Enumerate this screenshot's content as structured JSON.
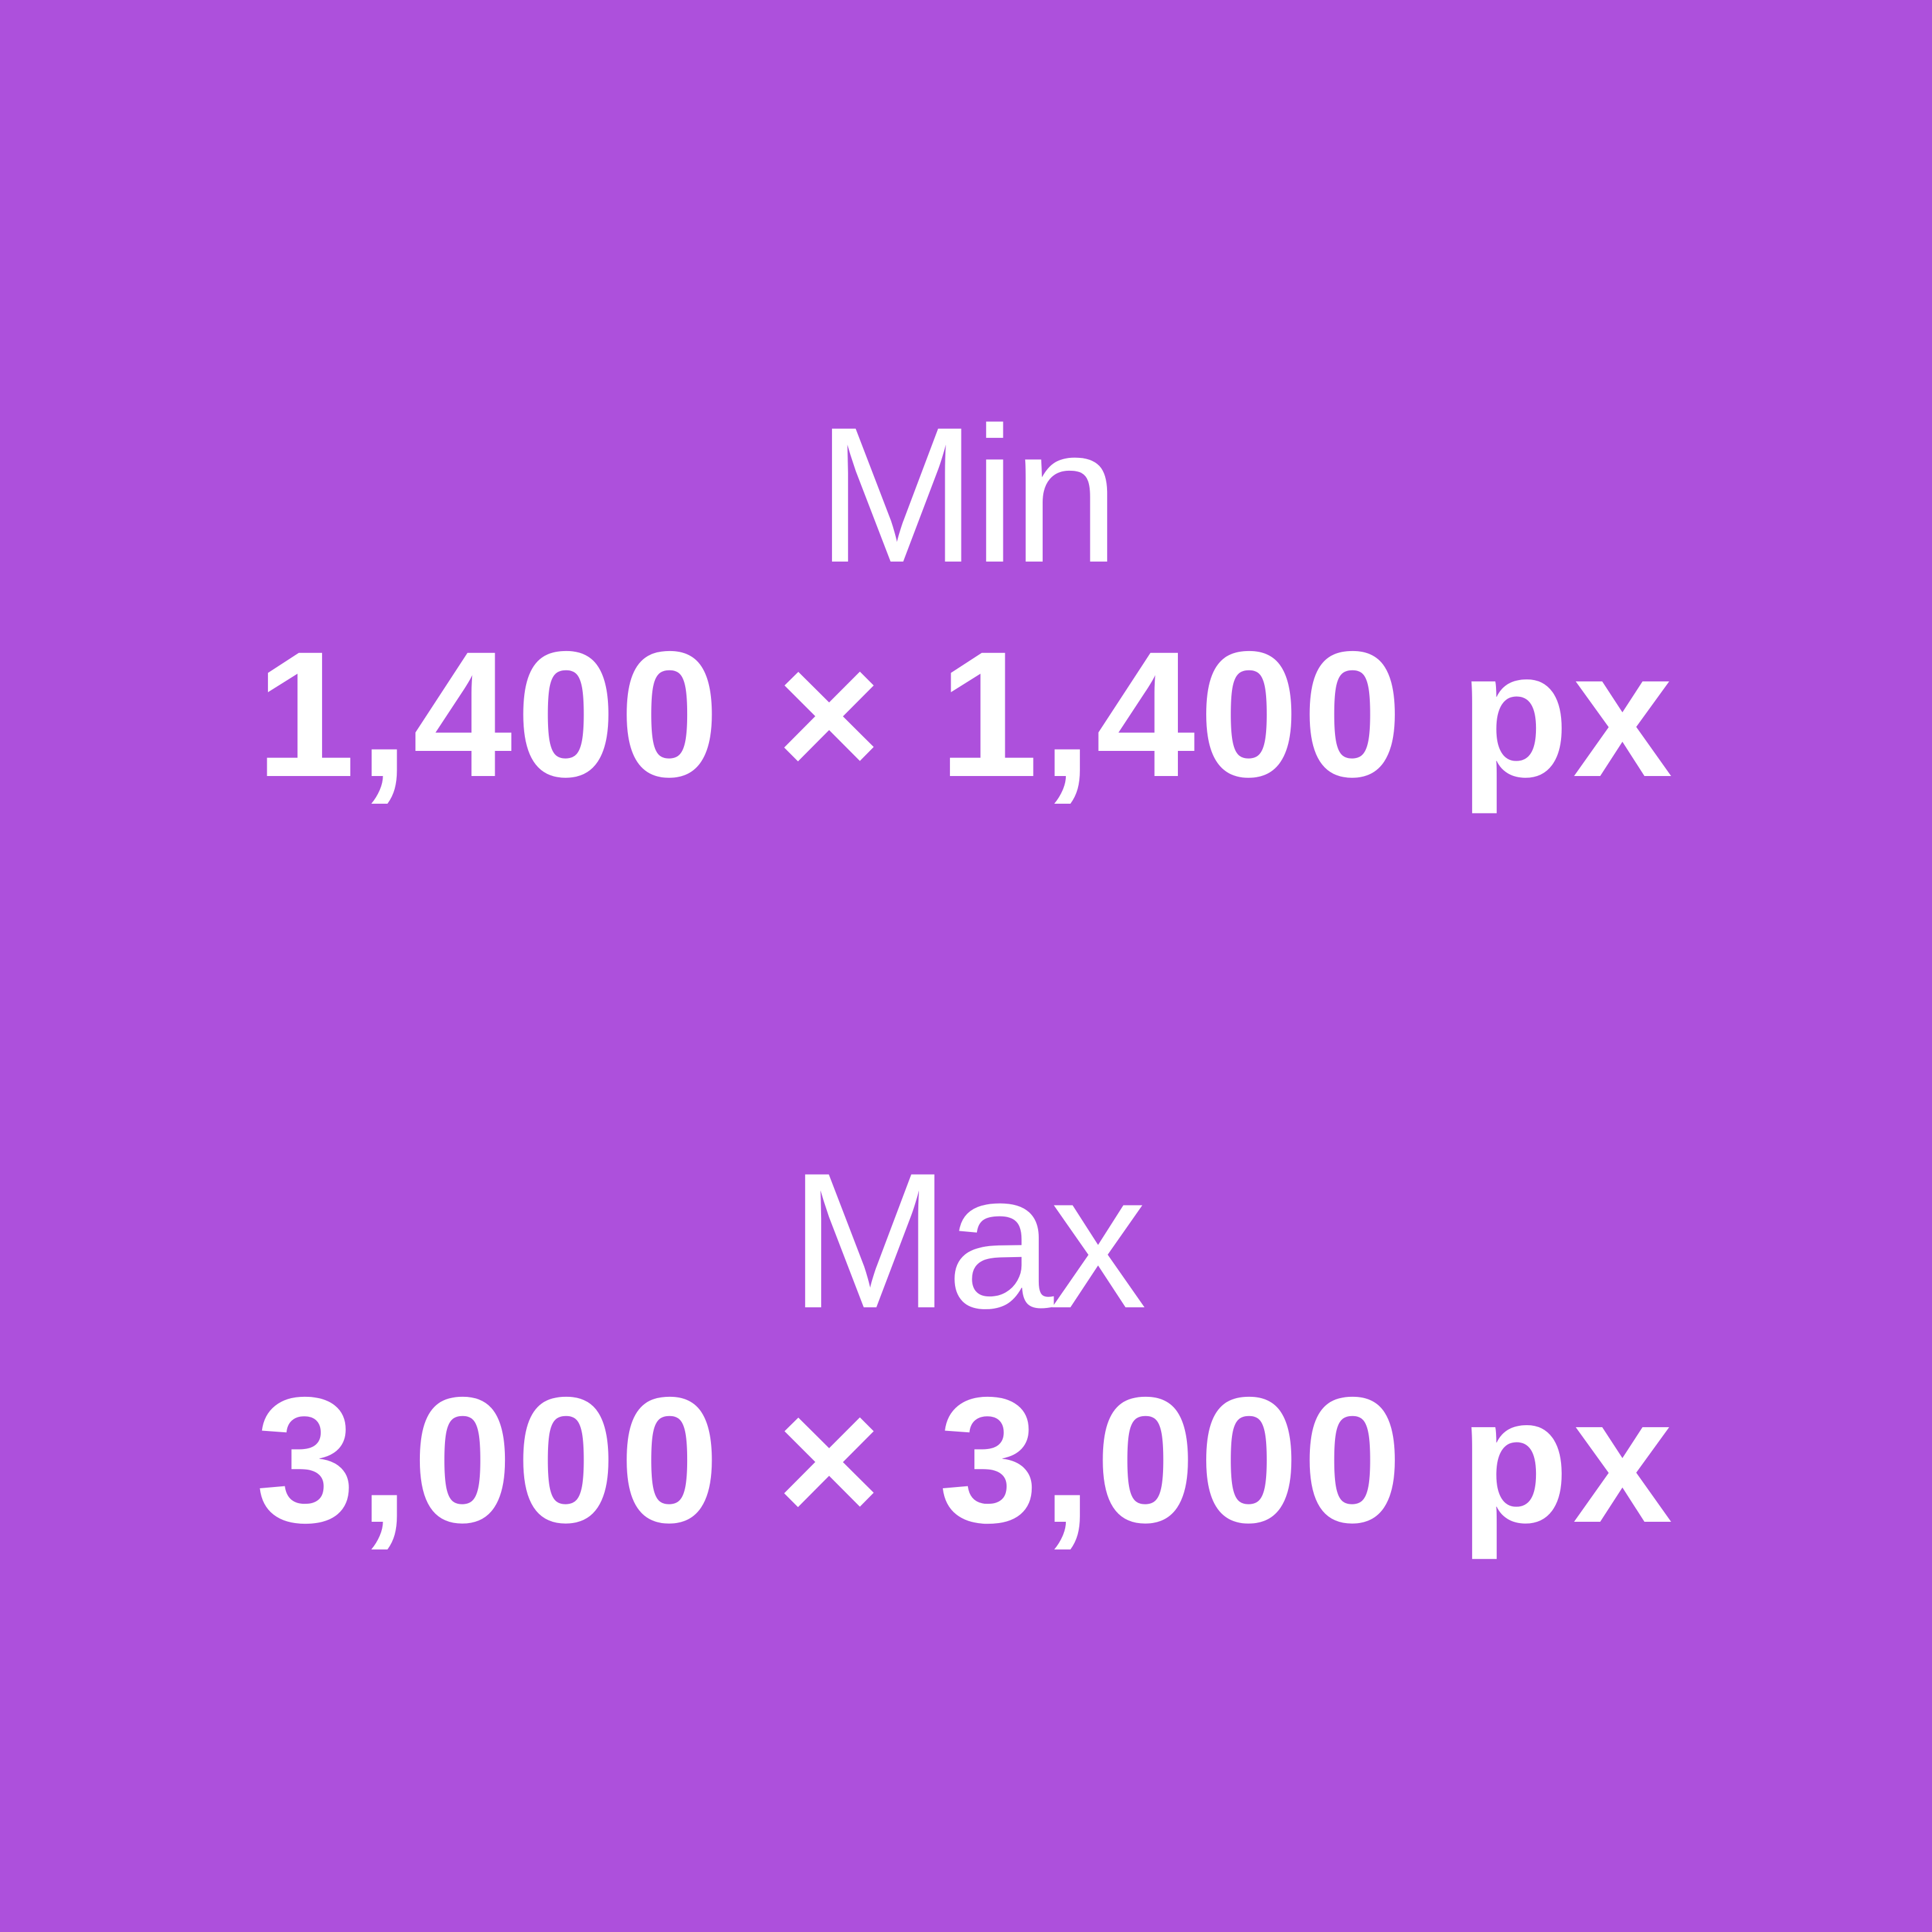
{
  "min": {
    "label": "Min",
    "value": "1,400 × 1,400 px"
  },
  "max": {
    "label": "Max",
    "value": "3,000 × 3,000 px"
  },
  "colors": {
    "background": "#ad50dc",
    "text": "#ffffff"
  }
}
